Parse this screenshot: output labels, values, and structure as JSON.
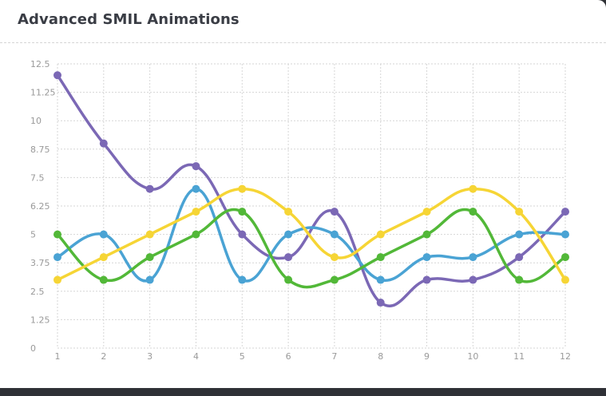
{
  "card": {
    "title": "Advanced SMIL Animations"
  },
  "chart_data": {
    "type": "line",
    "title": "Advanced SMIL Animations",
    "x": [
      1,
      2,
      3,
      4,
      5,
      6,
      7,
      8,
      9,
      10,
      11,
      12
    ],
    "y_ticks": [
      "0",
      "1.25",
      "2.5",
      "3.75",
      "5",
      "6.25",
      "7.5",
      "8.75",
      "10",
      "11.25",
      "12.5"
    ],
    "ylim": [
      0,
      12.5
    ],
    "grid": true,
    "smooth": true,
    "series": [
      {
        "color": "#7b68b5",
        "values": [
          12,
          9,
          7,
          8,
          5,
          4,
          6,
          2,
          3,
          3,
          4,
          6
        ]
      },
      {
        "color": "#4aa3d4",
        "values": [
          4,
          5,
          3,
          7,
          3,
          5,
          5,
          3,
          4,
          4,
          5,
          5
        ]
      },
      {
        "color": "#52b838",
        "values": [
          5,
          3,
          4,
          5,
          6,
          3,
          3,
          4,
          5,
          6,
          3,
          4
        ]
      },
      {
        "color": "#f6d535",
        "values": [
          3,
          4,
          5,
          6,
          7,
          6,
          4,
          5,
          6,
          7,
          6,
          3
        ]
      }
    ]
  }
}
